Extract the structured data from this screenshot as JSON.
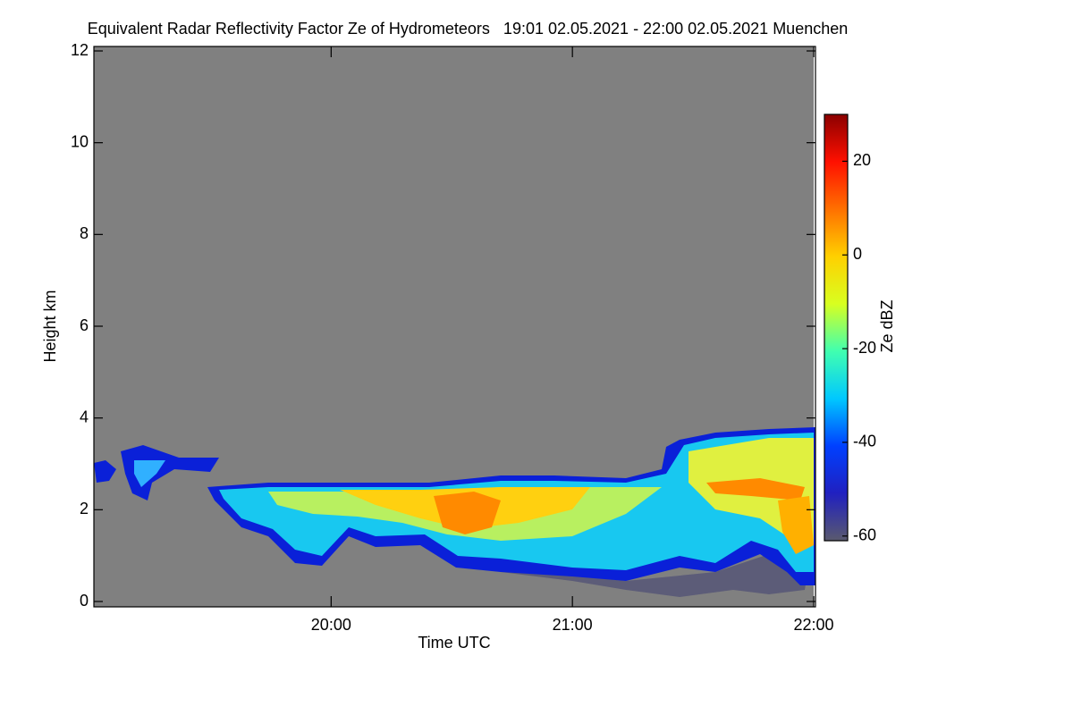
{
  "chart_data": {
    "type": "heatmap",
    "title": "Equivalent Radar Reflectivity Factor Ze of Hydrometeors   19:01 02.05.2021 - 22:00 02.05.2021 Muenchen",
    "x_label": "Time UTC",
    "y_label": "Height km",
    "xlim": [
      1141,
      1320
    ],
    "xticks": [
      {
        "value": 1200,
        "label": "20:00"
      },
      {
        "value": 1260,
        "label": "21:00"
      },
      {
        "value": 1320,
        "label": "22:00"
      }
    ],
    "ylim": [
      0,
      12
    ],
    "yticks": [
      0,
      2,
      4,
      6,
      8,
      10,
      12
    ],
    "background": "#808080",
    "colorbar": {
      "label": "Ze dBZ",
      "lim": [
        -61,
        30
      ],
      "ticks": [
        -60,
        -40,
        -20,
        0,
        20
      ],
      "colors": [
        "#5a5a6e",
        "#2020c0",
        "#0040ff",
        "#00c8ff",
        "#40ffb0",
        "#d8ff20",
        "#ffd000",
        "#ff7000",
        "#ff1000",
        "#8b0000"
      ]
    }
  }
}
